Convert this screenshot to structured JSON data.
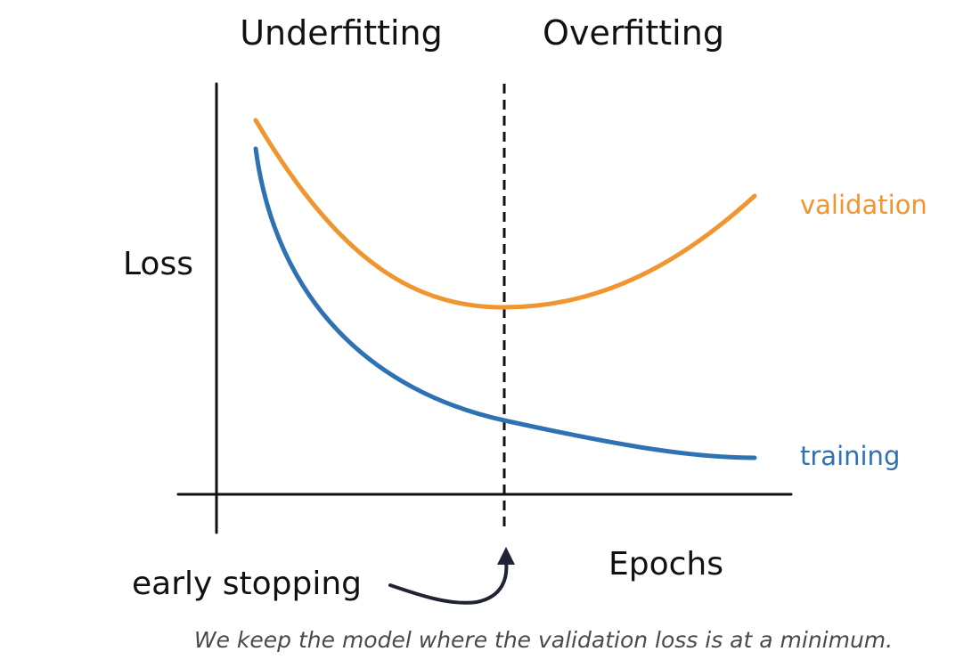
{
  "region_labels": {
    "left": "Underfitting",
    "right": "Overfitting"
  },
  "axes": {
    "y_label": "Loss",
    "x_label": "Epochs"
  },
  "series": {
    "validation": {
      "label": "validation",
      "color": "#f0952f"
    },
    "training": {
      "label": "training",
      "color": "#2f72b3"
    }
  },
  "annotation": {
    "early_stopping": "early stopping"
  },
  "colors": {
    "ink": "#111111",
    "caption": "#4a4a4a",
    "arrow": "#1f2433"
  },
  "caption": "We keep the model where the validation loss is at a minimum."
}
